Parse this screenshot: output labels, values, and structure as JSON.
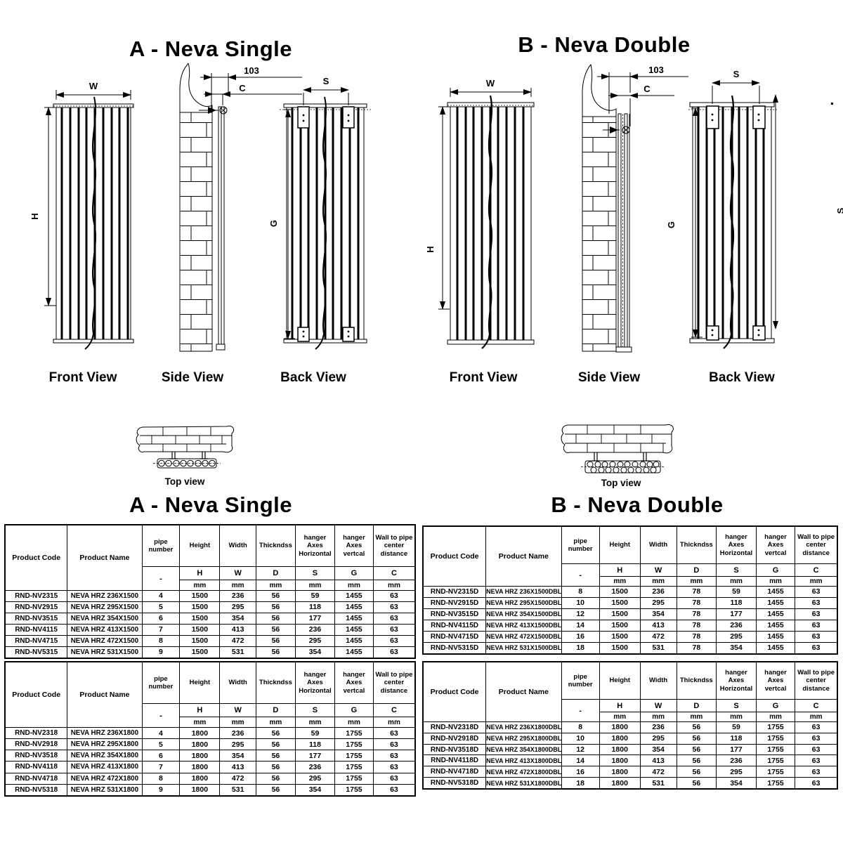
{
  "sections": {
    "a": {
      "title": "A - Neva Single",
      "table_title": "A - Neva Single"
    },
    "b": {
      "title": "B - Neva Double",
      "table_title": "B - Neva Double"
    }
  },
  "diagram_labels": {
    "w": "W",
    "h": "H",
    "s": "S",
    "g": "G",
    "c": "C",
    "offset_103": "103",
    "edge_s": "S",
    "front_view": "Front View",
    "side_view": "Side View",
    "back_view": "Back View",
    "top_view": "Top view"
  },
  "table_headers": {
    "product_code": "Product Code",
    "product_name": "Product Name",
    "pipe_number": "pipe number",
    "height": "Height",
    "width": "Width",
    "thickness": "Thickndss",
    "hanger_h": "hanger Axes Horizontal",
    "hanger_v": "hanger Axes vertcal",
    "wall": "Wall to pipe center distance",
    "dash": "-",
    "h": "H",
    "w": "W",
    "d": "D",
    "s": "S",
    "g": "G",
    "c": "C",
    "mm": "mm"
  },
  "tables": [
    {
      "section": "A",
      "series": "1500",
      "rows": [
        [
          "RND-NV2315",
          "NEVA HRZ 236X1500",
          "4",
          "1500",
          "236",
          "56",
          "59",
          "1455",
          "63"
        ],
        [
          "RND-NV2915",
          "NEVA HRZ 295X1500",
          "5",
          "1500",
          "295",
          "56",
          "118",
          "1455",
          "63"
        ],
        [
          "RND-NV3515",
          "NEVA HRZ 354X1500",
          "6",
          "1500",
          "354",
          "56",
          "177",
          "1455",
          "63"
        ],
        [
          "RND-NV4115",
          "NEVA HRZ 413X1500",
          "7",
          "1500",
          "413",
          "56",
          "236",
          "1455",
          "63"
        ],
        [
          "RND-NV4715",
          "NEVA HRZ 472X1500",
          "8",
          "1500",
          "472",
          "56",
          "295",
          "1455",
          "63"
        ],
        [
          "RND-NV5315",
          "NEVA HRZ 531X1500",
          "9",
          "1500",
          "531",
          "56",
          "354",
          "1455",
          "63"
        ]
      ]
    },
    {
      "section": "A",
      "series": "1800",
      "rows": [
        [
          "RND-NV2318",
          "NEVA HRZ 236X1800",
          "4",
          "1800",
          "236",
          "56",
          "59",
          "1755",
          "63"
        ],
        [
          "RND-NV2918",
          "NEVA HRZ 295X1800",
          "5",
          "1800",
          "295",
          "56",
          "118",
          "1755",
          "63"
        ],
        [
          "RND-NV3518",
          "NEVA HRZ 354X1800",
          "6",
          "1800",
          "354",
          "56",
          "177",
          "1755",
          "63"
        ],
        [
          "RND-NV4118",
          "NEVA HRZ 413X1800",
          "7",
          "1800",
          "413",
          "56",
          "236",
          "1755",
          "63"
        ],
        [
          "RND-NV4718",
          "NEVA HRZ 472X1800",
          "8",
          "1800",
          "472",
          "56",
          "295",
          "1755",
          "63"
        ],
        [
          "RND-NV5318",
          "NEVA HRZ 531X1800",
          "9",
          "1800",
          "531",
          "56",
          "354",
          "1755",
          "63"
        ]
      ]
    },
    {
      "section": "B",
      "series": "1500",
      "rows": [
        [
          "RND-NV2315D",
          "NEVA HRZ 236X1500DBL",
          "8",
          "1500",
          "236",
          "78",
          "59",
          "1455",
          "63"
        ],
        [
          "RND-NV2915D",
          "NEVA HRZ 295X1500DBL",
          "10",
          "1500",
          "295",
          "78",
          "118",
          "1455",
          "63"
        ],
        [
          "RND-NV3515D",
          "NEVA HRZ 354X1500DBL",
          "12",
          "1500",
          "354",
          "78",
          "177",
          "1455",
          "63"
        ],
        [
          "RND-NV4115D",
          "NEVA HRZ 413X1500DBL",
          "14",
          "1500",
          "413",
          "78",
          "236",
          "1455",
          "63"
        ],
        [
          "RND-NV4715D",
          "NEVA HRZ 472X1500DBL",
          "16",
          "1500",
          "472",
          "78",
          "295",
          "1455",
          "63"
        ],
        [
          "RND-NV5315D",
          "NEVA HRZ 531X1500DBL",
          "18",
          "1500",
          "531",
          "78",
          "354",
          "1455",
          "63"
        ]
      ]
    },
    {
      "section": "B",
      "series": "1800",
      "rows": [
        [
          "RND-NV2318D",
          "NEVA HRZ 236X1800DBL",
          "8",
          "1800",
          "236",
          "56",
          "59",
          "1755",
          "63"
        ],
        [
          "RND-NV2918D",
          "NEVA HRZ 295X1800DBL",
          "10",
          "1800",
          "295",
          "56",
          "118",
          "1755",
          "63"
        ],
        [
          "RND-NV3518D",
          "NEVA HRZ 354X1800DBL",
          "12",
          "1800",
          "354",
          "56",
          "177",
          "1755",
          "63"
        ],
        [
          "RND-NV4118D",
          "NEVA HRZ 413X1800DBL",
          "14",
          "1800",
          "413",
          "56",
          "236",
          "1755",
          "63"
        ],
        [
          "RND-NV4718D",
          "NEVA HRZ 472X1800DBL",
          "16",
          "1800",
          "472",
          "56",
          "295",
          "1755",
          "63"
        ],
        [
          "RND-NV5318D",
          "NEVA HRZ 531X1800DBL",
          "18",
          "1800",
          "531",
          "56",
          "354",
          "1755",
          "63"
        ]
      ]
    }
  ]
}
